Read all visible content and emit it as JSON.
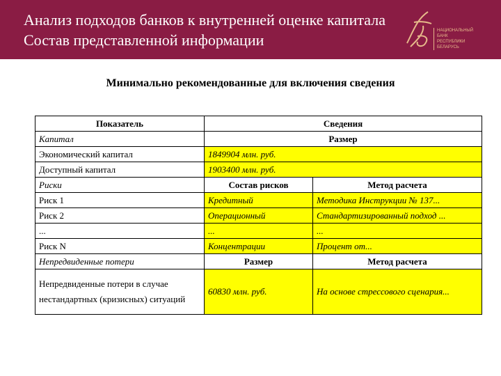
{
  "header": {
    "title_line1": "Анализ подходов банков к внутренней оценке капитала",
    "title_line2": "Состав представленной информации",
    "logo_text": [
      "НАЦИОНАЛЬНЫЙ",
      "БАНК",
      "РЕСПУБЛИКИ",
      "БЕЛАРУСЬ"
    ],
    "bg_color": "#8a1c44"
  },
  "subtitle": "Минимально рекомендованные для включения сведения",
  "table": {
    "head": [
      "Показатель",
      "Сведения"
    ],
    "capital_label": "Капитал",
    "capital_col": "Размер",
    "econ_capital": {
      "label": "Экономический капитал",
      "value": "1849904 млн. руб."
    },
    "avail_capital": {
      "label": "Доступный капитал",
      "value": "1903400 млн. руб."
    },
    "risks_label": "Риски",
    "risks_col1": "Состав рисков",
    "risks_col2": "Метод расчета",
    "risks": [
      {
        "label": "Риск 1",
        "type": "Кредитный",
        "method": "Методика Инструкции № 137..."
      },
      {
        "label": "Риск 2",
        "type": "Операционный",
        "method": "Стандартизированный подход ..."
      },
      {
        "label": "...",
        "type": "...",
        "method": "..."
      },
      {
        "label": "Риск N",
        "type": "Концентрации",
        "method": "Процент от..."
      }
    ],
    "losses_label": "Непредвиденные потери",
    "losses_col1": "Размер",
    "losses_col2": "Метод расчета",
    "losses": {
      "label": "Непредвиденные потери в случае нестандартных (кризисных) ситуаций",
      "value": "60830 млн. руб.",
      "method": "На основе стрессового сценария..."
    },
    "highlight_color": "#ffff00"
  }
}
